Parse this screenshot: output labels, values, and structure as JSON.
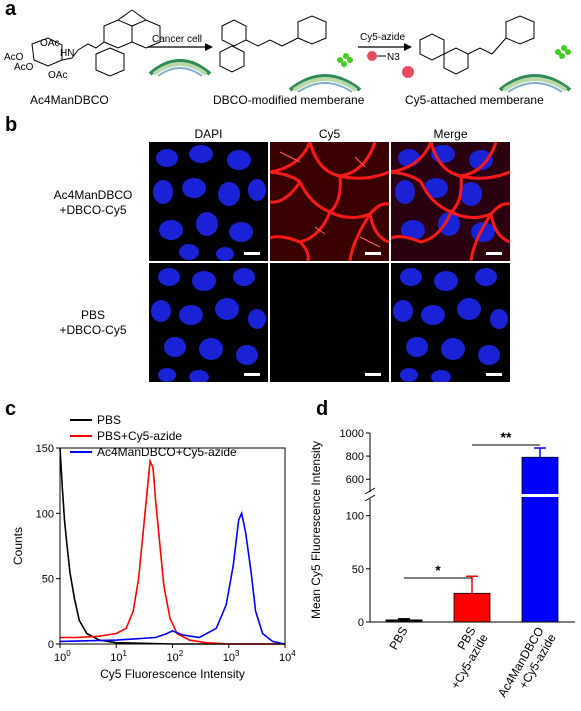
{
  "panels": {
    "a": "a",
    "b": "b",
    "c": "c",
    "d": "d"
  },
  "schemeA": {
    "compound1": "Ac4ManDBCO",
    "arrow1": "Cancer cell",
    "compound2": "DBCO-modified memberane",
    "arrow2": "Cy5-azide",
    "azide": "N3",
    "compound3": "Cy5-attached memberane",
    "oac_labels": [
      "OAc",
      "AcO",
      "AcO",
      "OAc",
      "HN"
    ]
  },
  "imaging": {
    "columns": [
      "DAPI",
      "Cy5",
      "Merge"
    ],
    "rows": [
      {
        "line1": "Ac4ManDBCO",
        "line2": "+DBCO-Cy5"
      },
      {
        "line1": "PBS",
        "line2": "+DBCO-Cy5"
      }
    ]
  },
  "chart_data": [
    {
      "type": "line",
      "panel": "c",
      "xlabel": "Cy5 Fluorescence Intensity",
      "ylabel": "Counts",
      "xscale": "log",
      "xlim": [
        1,
        10000
      ],
      "ylim": [
        0,
        150
      ],
      "xticks": [
        "10^0",
        "10^1",
        "10^2",
        "10^3",
        "10^4"
      ],
      "yticks": [
        0,
        50,
        100,
        150
      ],
      "legend_position": "top-left",
      "series": [
        {
          "name": "PBS",
          "color": "#000000",
          "x": [
            1.0,
            1.1,
            1.2,
            1.3,
            1.5,
            1.8,
            2.2,
            3,
            5,
            10,
            100,
            1000,
            10000
          ],
          "y": [
            150,
            120,
            95,
            80,
            55,
            35,
            18,
            8,
            3,
            1,
            0,
            0,
            0
          ]
        },
        {
          "name": "PBS+Cy5-azide",
          "color": "#ff0000",
          "x": [
            1,
            2,
            5,
            10,
            15,
            20,
            25,
            30,
            35,
            40,
            45,
            50,
            60,
            70,
            90,
            120,
            200,
            400,
            1000,
            10000
          ],
          "y": [
            5,
            5,
            6,
            8,
            12,
            25,
            50,
            85,
            115,
            140,
            135,
            110,
            75,
            45,
            20,
            8,
            3,
            1,
            0,
            0
          ]
        },
        {
          "name": "Ac4ManDBCO+Cy5-azide",
          "color": "#0000ff",
          "x": [
            1,
            10,
            50,
            80,
            100,
            150,
            300,
            600,
            900,
            1200,
            1500,
            1700,
            2000,
            2500,
            3000,
            4000,
            6000,
            10000
          ],
          "y": [
            2,
            3,
            5,
            8,
            10,
            7,
            5,
            12,
            30,
            60,
            95,
            100,
            85,
            55,
            25,
            8,
            2,
            0
          ]
        }
      ]
    },
    {
      "type": "bar",
      "panel": "d",
      "categories": [
        "PBS",
        "PBS +Cy5-azide",
        "Ac4ManDBCO +Cy5-azide"
      ],
      "values": [
        2,
        27,
        790
      ],
      "errors": [
        1,
        16,
        80
      ],
      "colors": [
        "#000000",
        "#ff0000",
        "#0000ff"
      ],
      "ylabel": "Mean Cy5 Fluorescence Intensity",
      "axis_break": [
        110,
        550
      ],
      "yticks": [
        0,
        50,
        100,
        600,
        800,
        1000
      ],
      "significance": [
        {
          "between": [
            0,
            1
          ],
          "label": "*"
        },
        {
          "between": [
            1,
            2
          ],
          "label": "**"
        }
      ]
    }
  ]
}
